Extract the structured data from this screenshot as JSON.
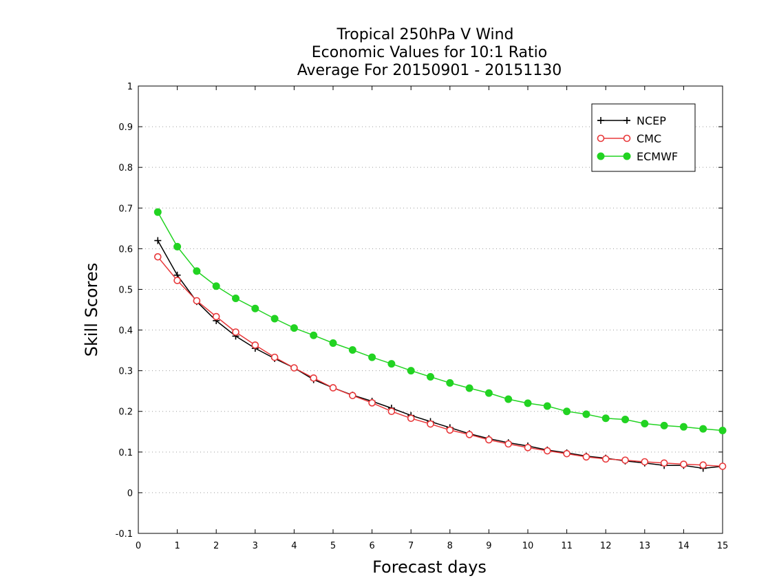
{
  "chart_data": {
    "type": "line",
    "title": [
      "Tropical 250hPa V Wind",
      "Economic Values for 10:1 Ratio",
      "Average For 20150901 - 20151130"
    ],
    "xlabel": "Forecast days",
    "ylabel": "Skill Scores",
    "xlim": [
      0,
      15
    ],
    "ylim": [
      -0.1,
      1
    ],
    "xticks": [
      0,
      1,
      2,
      3,
      4,
      5,
      6,
      7,
      8,
      9,
      10,
      11,
      12,
      13,
      14,
      15
    ],
    "yticks": [
      -0.1,
      0,
      0.1,
      0.2,
      0.3,
      0.4,
      0.5,
      0.6,
      0.7,
      0.8,
      0.9,
      1
    ],
    "ytick_labels": [
      "-0.1",
      "0",
      "0.1",
      "0.2",
      "0.3",
      "0.4",
      "0.5",
      "0.6",
      "0.7",
      "0.8",
      "0.9",
      "1"
    ],
    "grid": "horizontal dotted",
    "legend_position": "top-right",
    "x": [
      0.5,
      1,
      1.5,
      2,
      2.5,
      3,
      3.5,
      4,
      4.5,
      5,
      5.5,
      6,
      6.5,
      7,
      7.5,
      8,
      8.5,
      9,
      9.5,
      10,
      10.5,
      11,
      11.5,
      12,
      12.5,
      13,
      13.5,
      14,
      14.5,
      15
    ],
    "series": [
      {
        "name": "NCEP",
        "color": "#000000",
        "marker": "plus",
        "values": [
          0.62,
          0.535,
          0.47,
          0.423,
          0.385,
          0.355,
          0.33,
          0.307,
          0.278,
          0.258,
          0.24,
          0.225,
          0.208,
          0.19,
          0.175,
          0.16,
          0.145,
          0.133,
          0.123,
          0.115,
          0.105,
          0.098,
          0.09,
          0.085,
          0.078,
          0.073,
          0.067,
          0.067,
          0.06,
          0.065
        ]
      },
      {
        "name": "CMC",
        "color": "#e8383a",
        "marker": "open-circle",
        "values": [
          0.58,
          0.522,
          0.472,
          0.433,
          0.395,
          0.363,
          0.333,
          0.307,
          0.282,
          0.258,
          0.239,
          0.221,
          0.2,
          0.183,
          0.169,
          0.154,
          0.143,
          0.13,
          0.12,
          0.111,
          0.103,
          0.096,
          0.088,
          0.083,
          0.08,
          0.076,
          0.073,
          0.07,
          0.068,
          0.065
        ]
      },
      {
        "name": "ECMWF",
        "color": "#22d322",
        "marker": "filled-circle",
        "values": [
          0.69,
          0.605,
          0.545,
          0.508,
          0.478,
          0.453,
          0.428,
          0.405,
          0.387,
          0.368,
          0.351,
          0.333,
          0.317,
          0.3,
          0.285,
          0.27,
          0.257,
          0.245,
          0.23,
          0.22,
          0.213,
          0.2,
          0.193,
          0.183,
          0.18,
          0.17,
          0.165,
          0.162,
          0.157,
          0.153
        ]
      }
    ]
  }
}
